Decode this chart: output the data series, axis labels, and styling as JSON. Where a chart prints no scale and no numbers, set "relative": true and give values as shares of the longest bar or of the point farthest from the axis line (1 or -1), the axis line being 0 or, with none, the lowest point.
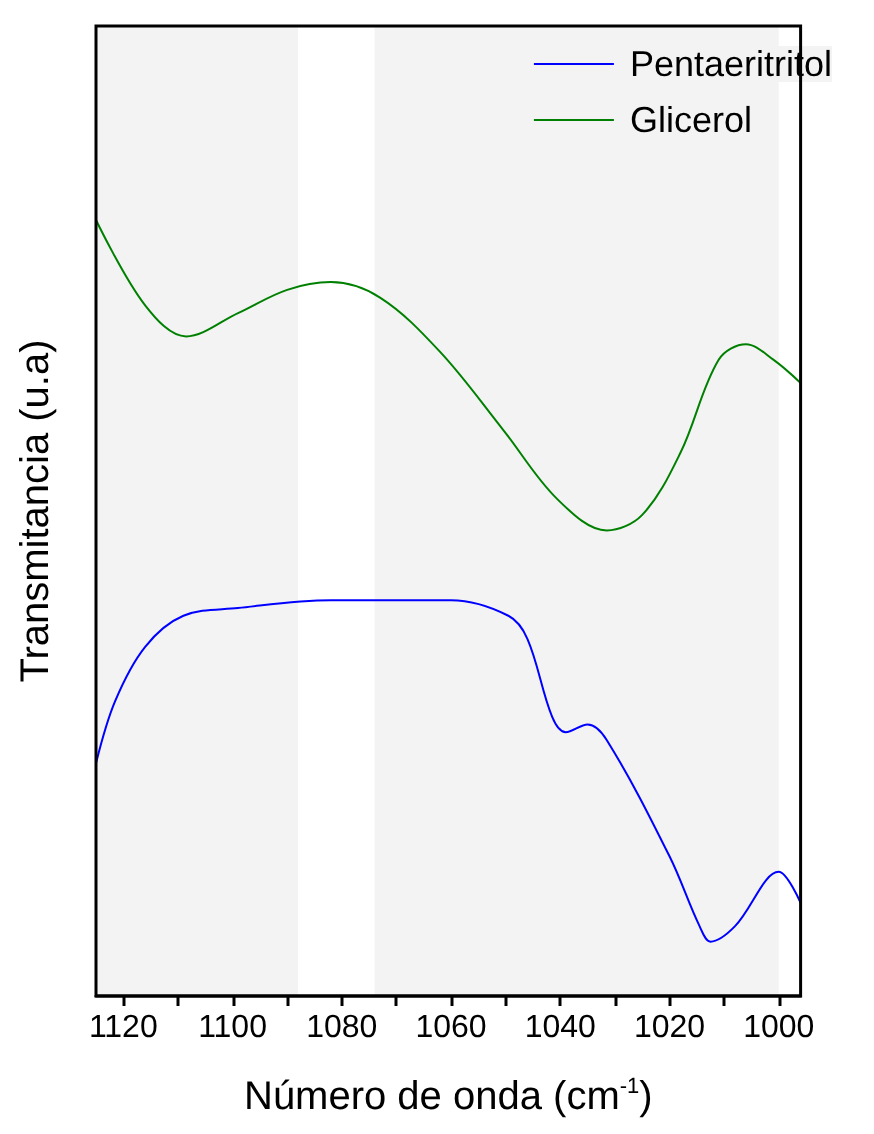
{
  "chart_data": {
    "type": "line",
    "xlabel": "Número de onda (cm$^{-1}$)",
    "ylabel": "Transmitancia (u.a)",
    "relative": true,
    "xlim": [
      1125,
      996
    ],
    "xticks": [
      1120,
      {
        "value": 1110,
        "label": null
      },
      1100,
      {
        "value": 1090,
        "label": null
      },
      1080,
      {
        "value": 1070,
        "label": null
      },
      1060,
      {
        "value": 1050,
        "label": null
      },
      1040,
      {
        "value": 1030,
        "label": null
      },
      1020,
      {
        "value": 1010,
        "label": null
      },
      1000
    ],
    "legend": "top right",
    "grid": false,
    "bands": [
      {
        "axis": "x",
        "from": 1125,
        "to": 1088,
        "color": "#f3f3f3"
      },
      {
        "axis": "x",
        "from": 1074,
        "to": 1000,
        "color": "#f3f3f3"
      }
    ],
    "series": [
      {
        "name": "Pentaeritritol",
        "color": "#0000ff",
        "x": [
          1125,
          1121.5,
          1116,
          1109,
          1099,
          1082,
          1060,
          1049.5,
          1046,
          1041.5,
          1039,
          1035,
          1031.5,
          1020,
          1014.5,
          1012.5,
          1008,
          1000,
          996
        ],
        "values": [
          0.3,
          0.38,
          0.45,
          0.49,
          0.5,
          0.51,
          0.51,
          0.49,
          0.46,
          0.36,
          0.34,
          0.35,
          0.33,
          0.18,
          0.09,
          0.07,
          0.09,
          0.16,
          0.12
        ]
      },
      {
        "name": "Glicerol",
        "color": "#008000",
        "x": [
          1125,
          1116,
          1108.5,
          1099,
          1090,
          1082,
          1073,
          1062,
          1050.5,
          1040.5,
          1031.5,
          1025,
          1018,
          1011,
          1006,
          1001,
          996
        ],
        "values": [
          1.0,
          0.89,
          0.85,
          0.88,
          0.91,
          0.92,
          0.9,
          0.83,
          0.73,
          0.64,
          0.6,
          0.62,
          0.7,
          0.82,
          0.84,
          0.82,
          0.79
        ]
      }
    ]
  }
}
